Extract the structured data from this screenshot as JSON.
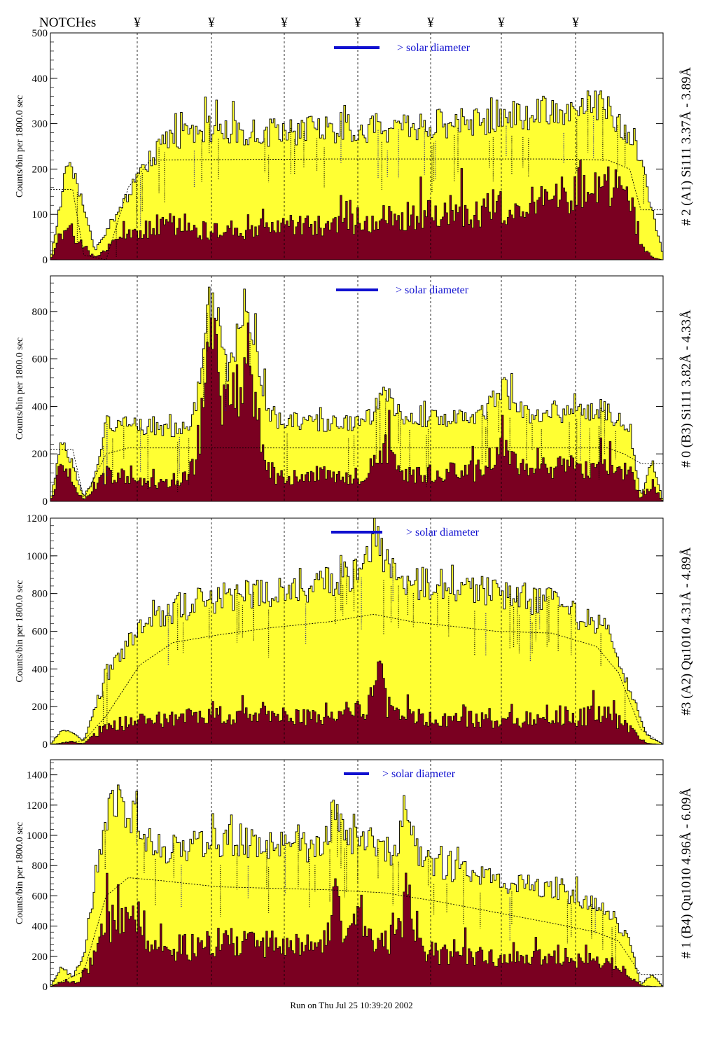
{
  "header": {
    "notches_label": "NOTCHes",
    "notch_marker": "¥",
    "notch_count": 7
  },
  "footer": {
    "run_text": "Run on Thu Jul 25 10:39:20 2002"
  },
  "colors": {
    "fill_total": "#ffff33",
    "fill_line": "#7a0021",
    "outline": "#000000",
    "solar_bar": "#1010d0",
    "line_id_blue": "#1a1a8a",
    "line_id_purple": "#8a1a6a",
    "background": "#ffffff"
  },
  "chart_data": [
    {
      "type": "area",
      "panel_title": "# 2 (A1) Si111  3.37Å - 3.89Å",
      "ylabel": "Counts/bin per   1800.0 sec",
      "ylim": [
        0,
        500
      ],
      "yticks": [
        0,
        100,
        200,
        300,
        400,
        500
      ],
      "solar_label": "> solar diameter",
      "series": [
        {
          "role": "total",
          "profile": [
            [
              0,
              0
            ],
            [
              3,
              210
            ],
            [
              5,
              160
            ],
            [
              8,
              20
            ],
            [
              10,
              60
            ],
            [
              13,
              120
            ],
            [
              16,
              190
            ],
            [
              20,
              250
            ],
            [
              25,
              290
            ],
            [
              30,
              285
            ],
            [
              40,
              280
            ],
            [
              50,
              290
            ],
            [
              60,
              285
            ],
            [
              70,
              300
            ],
            [
              80,
              310
            ],
            [
              90,
              330
            ],
            [
              100,
              340
            ],
            [
              105,
              260
            ],
            [
              110,
              10
            ]
          ]
        },
        {
          "role": "line",
          "profile": [
            [
              0,
              0
            ],
            [
              3,
              80
            ],
            [
              5,
              40
            ],
            [
              8,
              5
            ],
            [
              12,
              40
            ],
            [
              20,
              80
            ],
            [
              30,
              60
            ],
            [
              40,
              70
            ],
            [
              50,
              80
            ],
            [
              60,
              90
            ],
            [
              70,
              100
            ],
            [
              80,
              110
            ],
            [
              90,
              130
            ],
            [
              95,
              170
            ],
            [
              100,
              160
            ],
            [
              104,
              150
            ],
            [
              106,
              40
            ],
            [
              108,
              5
            ],
            [
              110,
              0
            ]
          ]
        },
        {
          "role": "model",
          "profile": [
            [
              0,
              155
            ],
            [
              4,
              155
            ],
            [
              6,
              10
            ],
            [
              10,
              0
            ],
            [
              14,
              160
            ],
            [
              18,
              220
            ],
            [
              50,
              222
            ],
            [
              90,
              222
            ],
            [
              100,
              220
            ],
            [
              104,
              200
            ],
            [
              106,
              110
            ],
            [
              110,
              110
            ]
          ]
        }
      ],
      "peaks": []
    },
    {
      "type": "area",
      "panel_title": "# 0 (B3) Si111  3.82Å - 4.33Å",
      "ylabel": "Counts/bin per   1800.0 sec",
      "ylim": [
        0,
        950
      ],
      "yticks": [
        0,
        200,
        400,
        600,
        800
      ],
      "solar_label": "> solar diameter",
      "series": [
        {
          "role": "total",
          "profile": [
            [
              0,
              0
            ],
            [
              2,
              260
            ],
            [
              4,
              150
            ],
            [
              6,
              20
            ],
            [
              8,
              100
            ],
            [
              10,
              330
            ],
            [
              15,
              320
            ],
            [
              20,
              300
            ],
            [
              30,
              320
            ],
            [
              40,
              340
            ],
            [
              50,
              330
            ],
            [
              60,
              340
            ],
            [
              70,
              350
            ],
            [
              80,
              360
            ],
            [
              90,
              370
            ],
            [
              100,
              380
            ],
            [
              104,
              300
            ],
            [
              106,
              20
            ],
            [
              108,
              170
            ],
            [
              110,
              0
            ]
          ]
        },
        {
          "role": "line",
          "profile": [
            [
              0,
              0
            ],
            [
              2,
              150
            ],
            [
              4,
              60
            ],
            [
              6,
              5
            ],
            [
              10,
              110
            ],
            [
              20,
              80
            ],
            [
              30,
              120
            ],
            [
              40,
              100
            ],
            [
              50,
              110
            ],
            [
              60,
              100
            ],
            [
              70,
              120
            ],
            [
              80,
              130
            ],
            [
              90,
              140
            ],
            [
              100,
              150
            ],
            [
              104,
              120
            ],
            [
              106,
              10
            ],
            [
              108,
              80
            ],
            [
              110,
              0
            ]
          ]
        },
        {
          "role": "model",
          "profile": [
            [
              0,
              220
            ],
            [
              4,
              220
            ],
            [
              6,
              10
            ],
            [
              10,
              200
            ],
            [
              14,
              225
            ],
            [
              50,
              225
            ],
            [
              100,
              225
            ],
            [
              103,
              200
            ],
            [
              106,
              160
            ],
            [
              110,
              160
            ]
          ]
        }
      ],
      "peaks": [
        {
          "x": 29,
          "w": 1.6,
          "total": 520,
          "line": 480
        },
        {
          "x": 35,
          "w": 2.0,
          "total": 480,
          "line": 470
        },
        {
          "x": 60,
          "w": 1.5,
          "total": 110,
          "line": 130
        },
        {
          "x": 81,
          "w": 1.5,
          "total": 120,
          "line": 140
        }
      ]
    },
    {
      "type": "area",
      "panel_title": "#3 (A2) Qu1010  4.31Å - 4.89Å",
      "ylabel": "Counts/bin per   1800.0 sec",
      "ylim": [
        0,
        1200
      ],
      "yticks": [
        0,
        200,
        400,
        600,
        800,
        1000,
        1200
      ],
      "solar_label": "> solar diameter",
      "series": [
        {
          "role": "total",
          "profile": [
            [
              0,
              0
            ],
            [
              2,
              80
            ],
            [
              4,
              60
            ],
            [
              6,
              20
            ],
            [
              10,
              350
            ],
            [
              14,
              550
            ],
            [
              20,
              700
            ],
            [
              30,
              780
            ],
            [
              40,
              820
            ],
            [
              50,
              850
            ],
            [
              55,
              900
            ],
            [
              58,
              1050
            ],
            [
              62,
              870
            ],
            [
              70,
              840
            ],
            [
              80,
              800
            ],
            [
              90,
              760
            ],
            [
              100,
              600
            ],
            [
              104,
              300
            ],
            [
              107,
              50
            ],
            [
              110,
              0
            ]
          ]
        },
        {
          "role": "line",
          "profile": [
            [
              0,
              0
            ],
            [
              4,
              10
            ],
            [
              6,
              5
            ],
            [
              10,
              100
            ],
            [
              20,
              140
            ],
            [
              30,
              150
            ],
            [
              40,
              150
            ],
            [
              50,
              150
            ],
            [
              58,
              200
            ],
            [
              65,
              140
            ],
            [
              80,
              130
            ],
            [
              90,
              130
            ],
            [
              100,
              160
            ],
            [
              104,
              80
            ],
            [
              107,
              5
            ],
            [
              110,
              0
            ]
          ]
        },
        {
          "role": "model",
          "profile": [
            [
              0,
              0
            ],
            [
              6,
              20
            ],
            [
              10,
              150
            ],
            [
              16,
              420
            ],
            [
              22,
              540
            ],
            [
              30,
              580
            ],
            [
              40,
              620
            ],
            [
              50,
              650
            ],
            [
              58,
              690
            ],
            [
              65,
              650
            ],
            [
              80,
              600
            ],
            [
              90,
              590
            ],
            [
              98,
              520
            ],
            [
              102,
              380
            ],
            [
              106,
              80
            ],
            [
              110,
              0
            ]
          ]
        }
      ],
      "peaks": [
        {
          "x": 59,
          "w": 0.8,
          "total": 80,
          "line": 180
        }
      ]
    },
    {
      "type": "area",
      "panel_title": "# 1 (B4) Qu1010 4.96Å - 6.09Å",
      "ylabel": "Counts/bin per   1800.0 sec",
      "ylim": [
        0,
        1500
      ],
      "yticks": [
        0,
        200,
        400,
        600,
        800,
        1000,
        1200,
        1400
      ],
      "solar_label": "> solar diameter",
      "series": [
        {
          "role": "total",
          "profile": [
            [
              0,
              0
            ],
            [
              2,
              130
            ],
            [
              4,
              60
            ],
            [
              6,
              200
            ],
            [
              8,
              700
            ],
            [
              10,
              1100
            ],
            [
              12,
              1250
            ],
            [
              16,
              1050
            ],
            [
              20,
              900
            ],
            [
              30,
              950
            ],
            [
              40,
              950
            ],
            [
              50,
              900
            ],
            [
              55,
              1000
            ],
            [
              60,
              900
            ],
            [
              70,
              800
            ],
            [
              80,
              700
            ],
            [
              90,
              650
            ],
            [
              100,
              520
            ],
            [
              104,
              300
            ],
            [
              106,
              10
            ],
            [
              108,
              80
            ],
            [
              110,
              0
            ]
          ]
        },
        {
          "role": "line",
          "profile": [
            [
              0,
              0
            ],
            [
              3,
              40
            ],
            [
              5,
              20
            ],
            [
              8,
              200
            ],
            [
              10,
              400
            ],
            [
              12,
              520
            ],
            [
              16,
              420
            ],
            [
              20,
              220
            ],
            [
              30,
              300
            ],
            [
              40,
              280
            ],
            [
              50,
              260
            ],
            [
              55,
              400
            ],
            [
              60,
              300
            ],
            [
              70,
              220
            ],
            [
              80,
              200
            ],
            [
              90,
              180
            ],
            [
              100,
              160
            ],
            [
              104,
              80
            ],
            [
              106,
              5
            ],
            [
              110,
              0
            ]
          ]
        },
        {
          "role": "model",
          "profile": [
            [
              0,
              0
            ],
            [
              6,
              100
            ],
            [
              10,
              600
            ],
            [
              14,
              720
            ],
            [
              20,
              700
            ],
            [
              30,
              660
            ],
            [
              40,
              650
            ],
            [
              50,
              640
            ],
            [
              60,
              620
            ],
            [
              70,
              560
            ],
            [
              80,
              490
            ],
            [
              90,
              420
            ],
            [
              98,
              360
            ],
            [
              102,
              300
            ],
            [
              106,
              80
            ],
            [
              110,
              80
            ]
          ]
        }
      ],
      "peaks": [
        {
          "x": 64,
          "w": 1.0,
          "total": 350,
          "line": 300
        },
        {
          "x": 51,
          "w": 0.9,
          "total": 250,
          "line": 250
        }
      ]
    }
  ]
}
